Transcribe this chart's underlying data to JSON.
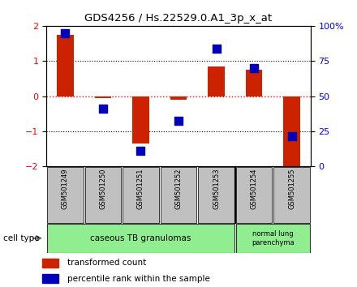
{
  "title": "GDS4256 / Hs.22529.0.A1_3p_x_at",
  "samples": [
    "GSM501249",
    "GSM501250",
    "GSM501251",
    "GSM501252",
    "GSM501253",
    "GSM501254",
    "GSM501255"
  ],
  "red_bars": [
    1.75,
    -0.05,
    -1.35,
    -0.1,
    0.85,
    0.75,
    -2.1
  ],
  "blue_dots": [
    1.8,
    -0.35,
    -1.55,
    -0.7,
    1.35,
    0.8,
    -1.15
  ],
  "ylim": [
    -2,
    2
  ],
  "yticks_left": [
    -2,
    -1,
    0,
    1,
    2
  ],
  "yticks_right": [
    0,
    25,
    50,
    75,
    100
  ],
  "ytick_labels_right": [
    "0",
    "25",
    "50",
    "75",
    "100%"
  ],
  "bar_color": "#cc2200",
  "dot_color": "#0000bb",
  "bar_width": 0.45,
  "dot_size": 55,
  "sample_box_color": "#c0c0c0",
  "cell_group1_color": "#90ee90",
  "cell_group1_label": "caseous TB granulomas",
  "cell_group1_range": [
    0,
    4
  ],
  "cell_group2_color": "#90ee90",
  "cell_group2_label": "normal lung\nparenchyma",
  "cell_group2_range": [
    5,
    6
  ],
  "legend_red_label": "transformed count",
  "legend_blue_label": "percentile rank within the sample",
  "cell_type_label": "cell type",
  "bg_color": "#ffffff"
}
